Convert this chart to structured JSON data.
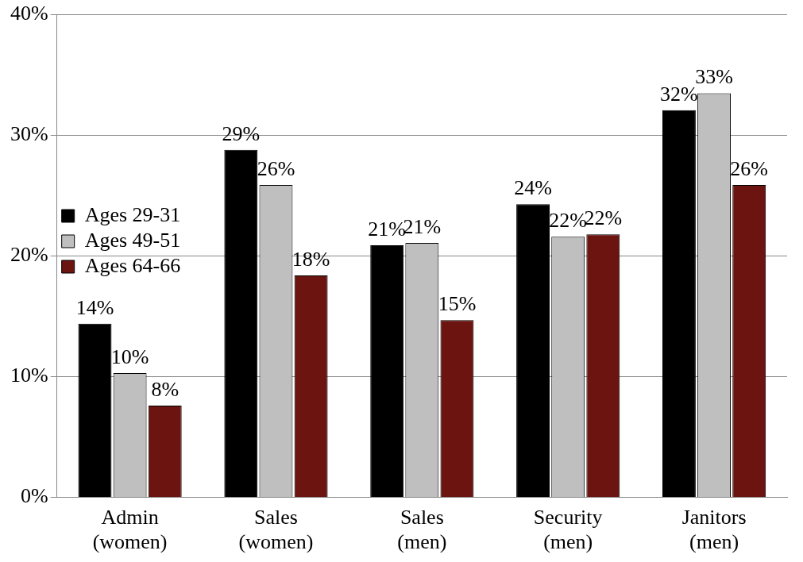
{
  "chart_data": {
    "type": "bar",
    "categories": [
      "Admin (women)",
      "Sales (women)",
      "Sales (men)",
      "Security (men)",
      "Janitors (men)"
    ],
    "series": [
      {
        "name": "Ages 29-31",
        "color": "#000000",
        "values": [
          14.4,
          28.8,
          20.9,
          24.3,
          32.1
        ],
        "value_labels": [
          "14%",
          "29%",
          "21%",
          "24%",
          "32%"
        ]
      },
      {
        "name": "Ages 49-51",
        "color": "#bfbfbf",
        "values": [
          10.3,
          25.9,
          21.1,
          21.6,
          33.5
        ],
        "value_labels": [
          "10%",
          "26%",
          "21%",
          "22%",
          "33%"
        ]
      },
      {
        "name": "Ages 64-66",
        "color": "#6b1410",
        "values": [
          7.6,
          18.4,
          14.7,
          21.8,
          25.9
        ],
        "value_labels": [
          "8%",
          "18%",
          "15%",
          "22%",
          "26%"
        ]
      }
    ],
    "ylim": [
      0,
      40
    ],
    "yticks": [
      {
        "value": 0,
        "label": "0%"
      },
      {
        "value": 10,
        "label": "10%"
      },
      {
        "value": 20,
        "label": "20%"
      },
      {
        "value": 30,
        "label": "30%"
      },
      {
        "value": 40,
        "label": "40%"
      }
    ],
    "grid": "y",
    "legend": "top"
  }
}
